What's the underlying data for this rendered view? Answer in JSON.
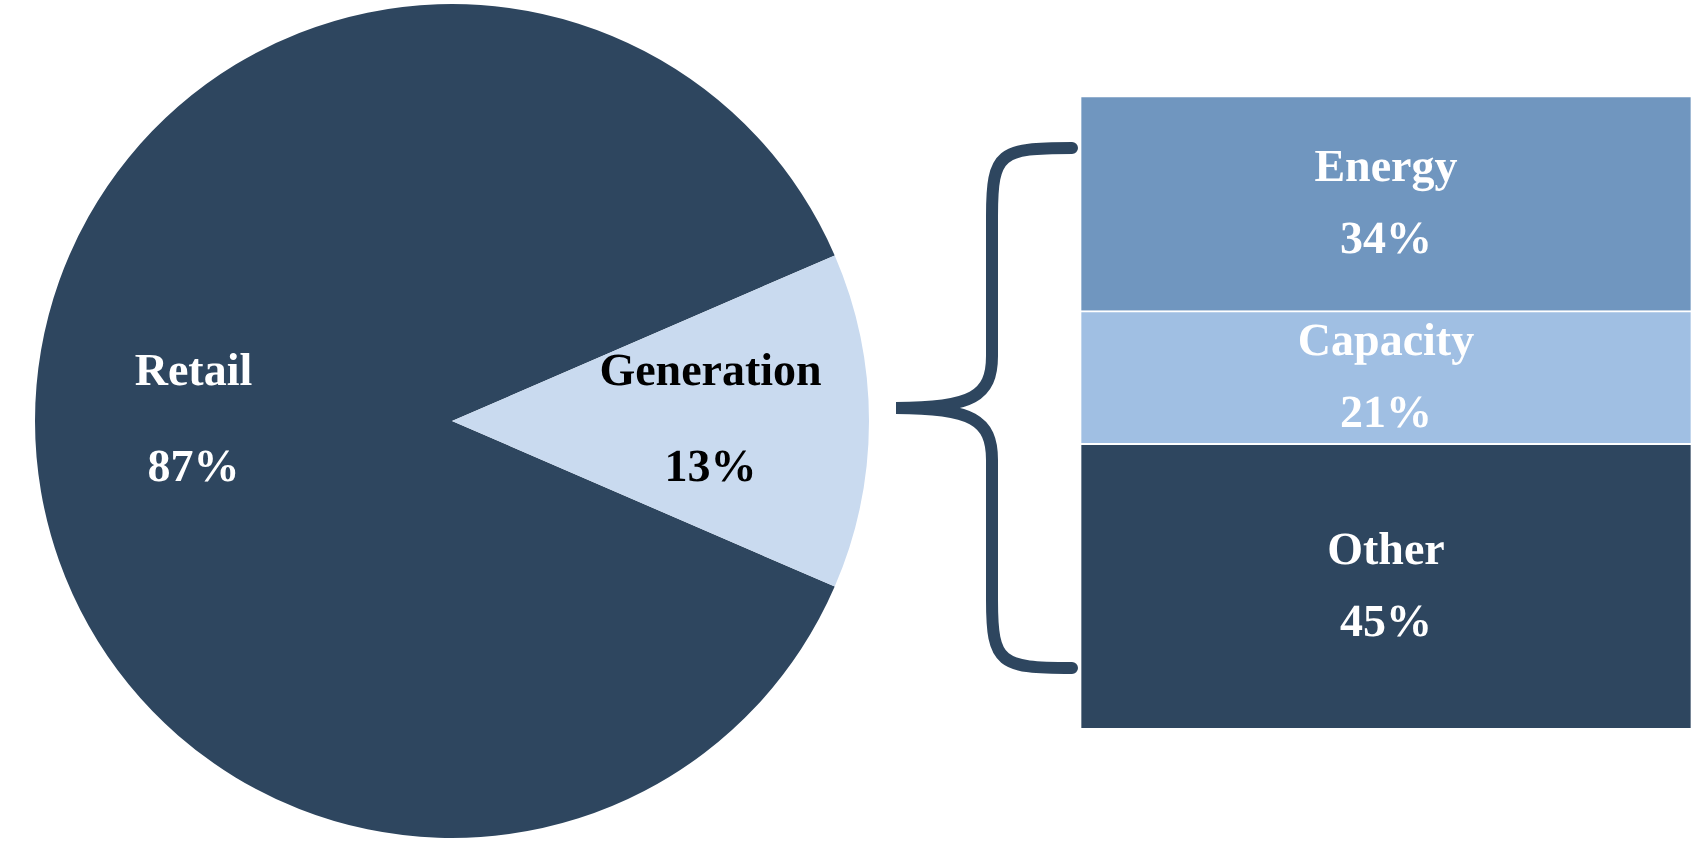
{
  "chart_data": [
    {
      "type": "pie",
      "categories": [
        "Retail",
        "Generation"
      ],
      "values": [
        87,
        13
      ],
      "colors": [
        "#2e465f",
        "#c9daef"
      ],
      "value_labels": [
        "87%",
        "13%"
      ],
      "legend": false
    },
    {
      "type": "bar",
      "stacked": true,
      "categories": [
        null
      ],
      "legend": false,
      "series": [
        {
          "name": "Other",
          "color": "#2e465f",
          "values": [
            45
          ],
          "value_labels": [
            "45%"
          ]
        },
        {
          "name": "Capacity",
          "color": "#a0bfe3",
          "values": [
            21
          ],
          "value_labels": [
            "21%"
          ]
        },
        {
          "name": "Energy",
          "color": "#7096bf",
          "values": [
            34
          ],
          "value_labels": [
            "34%"
          ]
        }
      ]
    }
  ]
}
